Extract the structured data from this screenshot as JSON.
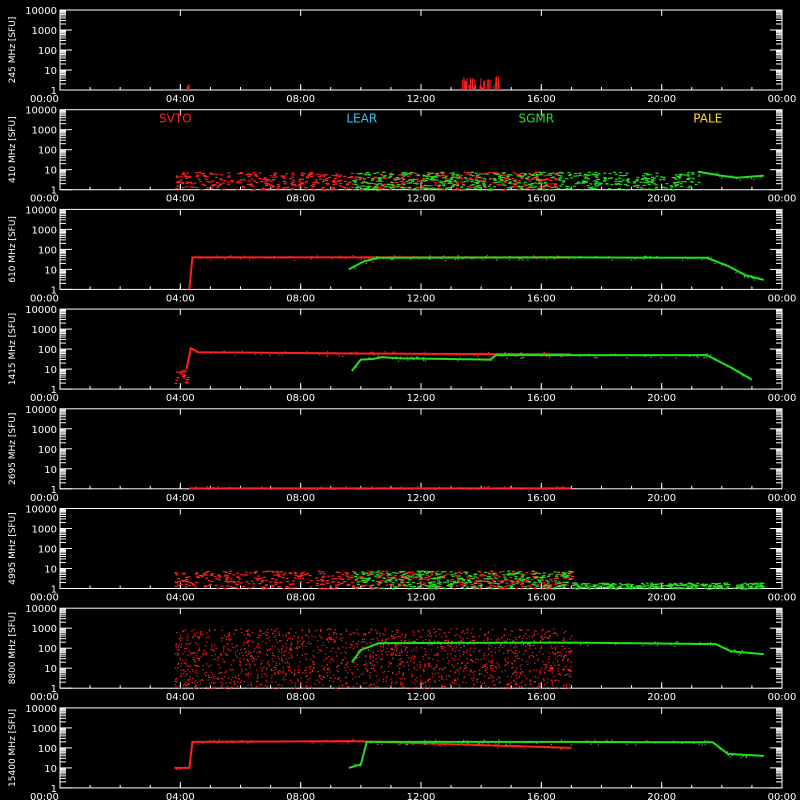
{
  "chart_data": {
    "type": "scatter",
    "x_tick_labels": [
      "00:00",
      "04:00",
      "08:00",
      "12:00",
      "16:00",
      "20:00",
      "00:00"
    ],
    "y_tick_labels": [
      "1",
      "10",
      "100",
      "1000",
      "10000"
    ],
    "y_scale": "log",
    "ylim": [
      1,
      10000
    ],
    "xlim_hours": [
      0,
      24
    ],
    "background": "#000000",
    "axis_color": "#ffffff",
    "stations": [
      {
        "name": "SVTO",
        "color": "#ff2020"
      },
      {
        "name": "LEAR",
        "color": "#30c8ff"
      },
      {
        "name": "SGMR",
        "color": "#20e020"
      },
      {
        "name": "PALE",
        "color": "#ffe020"
      }
    ],
    "panels": [
      {
        "ylabel": "245 MHz [SFU]",
        "series": [
          {
            "station": "SVTO",
            "kind": "spikes",
            "start": 13.3,
            "end": 14.6,
            "low": 1,
            "high": 5
          },
          {
            "station": "SVTO",
            "kind": "spikes",
            "start": 4.2,
            "end": 4.3,
            "low": 1,
            "high": 2
          }
        ]
      },
      {
        "ylabel": "410 MHz [SFU]",
        "show_station_labels": true,
        "series": [
          {
            "station": "SVTO",
            "kind": "band",
            "start": 3.8,
            "end": 16.6,
            "low": 1,
            "high": 8
          },
          {
            "station": "SGMR",
            "kind": "band",
            "start": 9.7,
            "end": 21.2,
            "low": 1,
            "high": 8
          },
          {
            "station": "SGMR",
            "kind": "line",
            "points": [
              [
                21.2,
                8
              ],
              [
                22,
                5
              ],
              [
                22.5,
                4
              ],
              [
                23.4,
                5
              ]
            ]
          }
        ]
      },
      {
        "ylabel": "610 MHz [SFU]",
        "series": [
          {
            "station": "SVTO",
            "kind": "line",
            "points": [
              [
                4.3,
                1
              ],
              [
                4.4,
                40
              ],
              [
                9.7,
                40
              ],
              [
                14.5,
                40
              ],
              [
                17,
                40
              ]
            ]
          },
          {
            "station": "SGMR",
            "kind": "line",
            "points": [
              [
                9.6,
                10
              ],
              [
                10.1,
                25
              ],
              [
                10.3,
                30
              ],
              [
                10.6,
                38
              ],
              [
                16.8,
                40
              ],
              [
                21.5,
                38
              ],
              [
                22.2,
                15
              ],
              [
                22.8,
                5
              ],
              [
                23.4,
                3
              ]
            ]
          }
        ]
      },
      {
        "ylabel": "1415 MHz [SFU]",
        "series": [
          {
            "station": "SVTO",
            "kind": "band",
            "start": 3.8,
            "end": 4.3,
            "low": 2,
            "high": 10
          },
          {
            "station": "SVTO",
            "kind": "line",
            "points": [
              [
                4.2,
                10
              ],
              [
                4.35,
                110
              ],
              [
                4.6,
                70
              ],
              [
                9.7,
                60
              ],
              [
                17,
                55
              ]
            ]
          },
          {
            "station": "SGMR",
            "kind": "line",
            "points": [
              [
                9.7,
                8
              ],
              [
                10.0,
                30
              ],
              [
                10.4,
                32
              ],
              [
                10.7,
                40
              ],
              [
                11.2,
                35
              ],
              [
                14.3,
                30
              ],
              [
                14.5,
                50
              ],
              [
                17,
                50
              ],
              [
                21.5,
                50
              ],
              [
                22.3,
                12
              ],
              [
                23,
                3
              ]
            ]
          }
        ]
      },
      {
        "ylabel": "2695 MHz [SFU]",
        "series": [
          {
            "station": "SVTO",
            "kind": "line",
            "points": [
              [
                4.3,
                1.05
              ],
              [
                17,
                1.05
              ]
            ]
          }
        ]
      },
      {
        "ylabel": "4995 MHz [SFU]",
        "series": [
          {
            "station": "SVTO",
            "kind": "band",
            "start": 3.8,
            "end": 17,
            "low": 1,
            "high": 8
          },
          {
            "station": "SGMR",
            "kind": "band",
            "start": 9.7,
            "end": 17,
            "low": 1,
            "high": 8
          },
          {
            "station": "SGMR",
            "kind": "band",
            "start": 17,
            "end": 23.4,
            "low": 1,
            "high": 2
          }
        ]
      },
      {
        "ylabel": "8800 MHz [SFU]",
        "series": [
          {
            "station": "SVTO",
            "kind": "band",
            "start": 3.8,
            "end": 17,
            "low": 1,
            "high": 1000,
            "density": 1800
          },
          {
            "station": "SGMR",
            "kind": "line",
            "points": [
              [
                9.7,
                20
              ],
              [
                10.0,
                80
              ],
              [
                10.6,
                180
              ],
              [
                17,
                190
              ],
              [
                21.8,
                160
              ],
              [
                22.3,
                70
              ],
              [
                23.4,
                50
              ]
            ]
          }
        ]
      },
      {
        "ylabel": "15400 MHz [SFU]",
        "series": [
          {
            "station": "SVTO",
            "kind": "line",
            "points": [
              [
                3.8,
                10
              ],
              [
                4.3,
                10
              ],
              [
                4.4,
                200
              ],
              [
                9.7,
                220
              ],
              [
                17,
                100
              ]
            ]
          },
          {
            "station": "SGMR",
            "kind": "line",
            "points": [
              [
                9.6,
                10
              ],
              [
                10.0,
                15
              ],
              [
                10.2,
                200
              ],
              [
                17,
                200
              ],
              [
                21.7,
                190
              ],
              [
                22.2,
                50
              ],
              [
                23.4,
                40
              ]
            ]
          }
        ]
      }
    ]
  }
}
